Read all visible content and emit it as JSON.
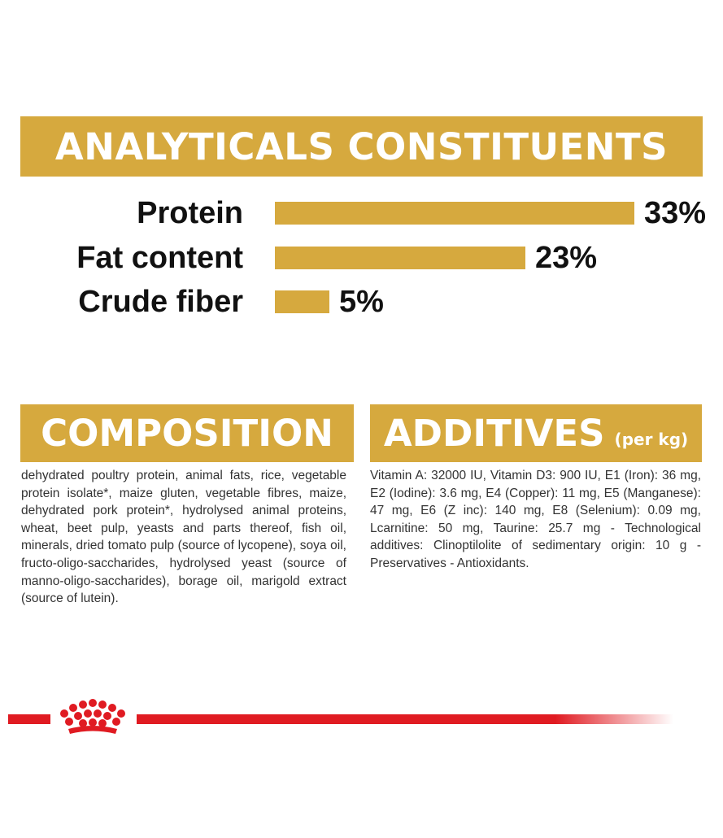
{
  "analytical": {
    "title": "ANALYTICALS CONSTITUENTS",
    "rows": [
      {
        "label": "Protein",
        "value": "33%",
        "percent": 33
      },
      {
        "label": "Fat content",
        "value": "23%",
        "percent": 23
      },
      {
        "label": "Crude fiber",
        "value": "5%",
        "percent": 5
      }
    ]
  },
  "composition": {
    "title": "COMPOSITION",
    "text": "dehydrated poultry protein, animal fats, rice, vegetable protein isolate*, maize gluten, vegetable fibres, maize, dehydrated pork protein*, hydrolysed animal proteins, wheat, beet pulp, yeasts and parts thereof, fish oil, minerals, dried tomato pulp (source of lycopene), soya oil, fructo-oligo-saccharides, hydrolysed yeast (source of manno-oligo-saccharides), borage oil, marigold extract (source of lutein)."
  },
  "additives": {
    "title": "ADDITIVES",
    "subtitle": "(per kg)",
    "text": "Vitamin A: 32000 IU, Vitamin D3: 900 IU, E1 (Iron): 36 mg, E2 (Iodine): 3.6 mg, E4 (Copper): 11 mg, E5 (Manganese): 47 mg, E6 (Z inc): 140 mg, E8 (Selenium): 0.09 mg, Lcarnitine: 50 mg, Taurine: 25.7 mg - Technological additives: Clinoptilolite of sedimentary origin: 10 g - Preservatives - Antioxidants."
  },
  "brand": {
    "logo_icon": "crown-icon",
    "accent_color": "#d6a93e",
    "brand_color": "#e01b22"
  }
}
